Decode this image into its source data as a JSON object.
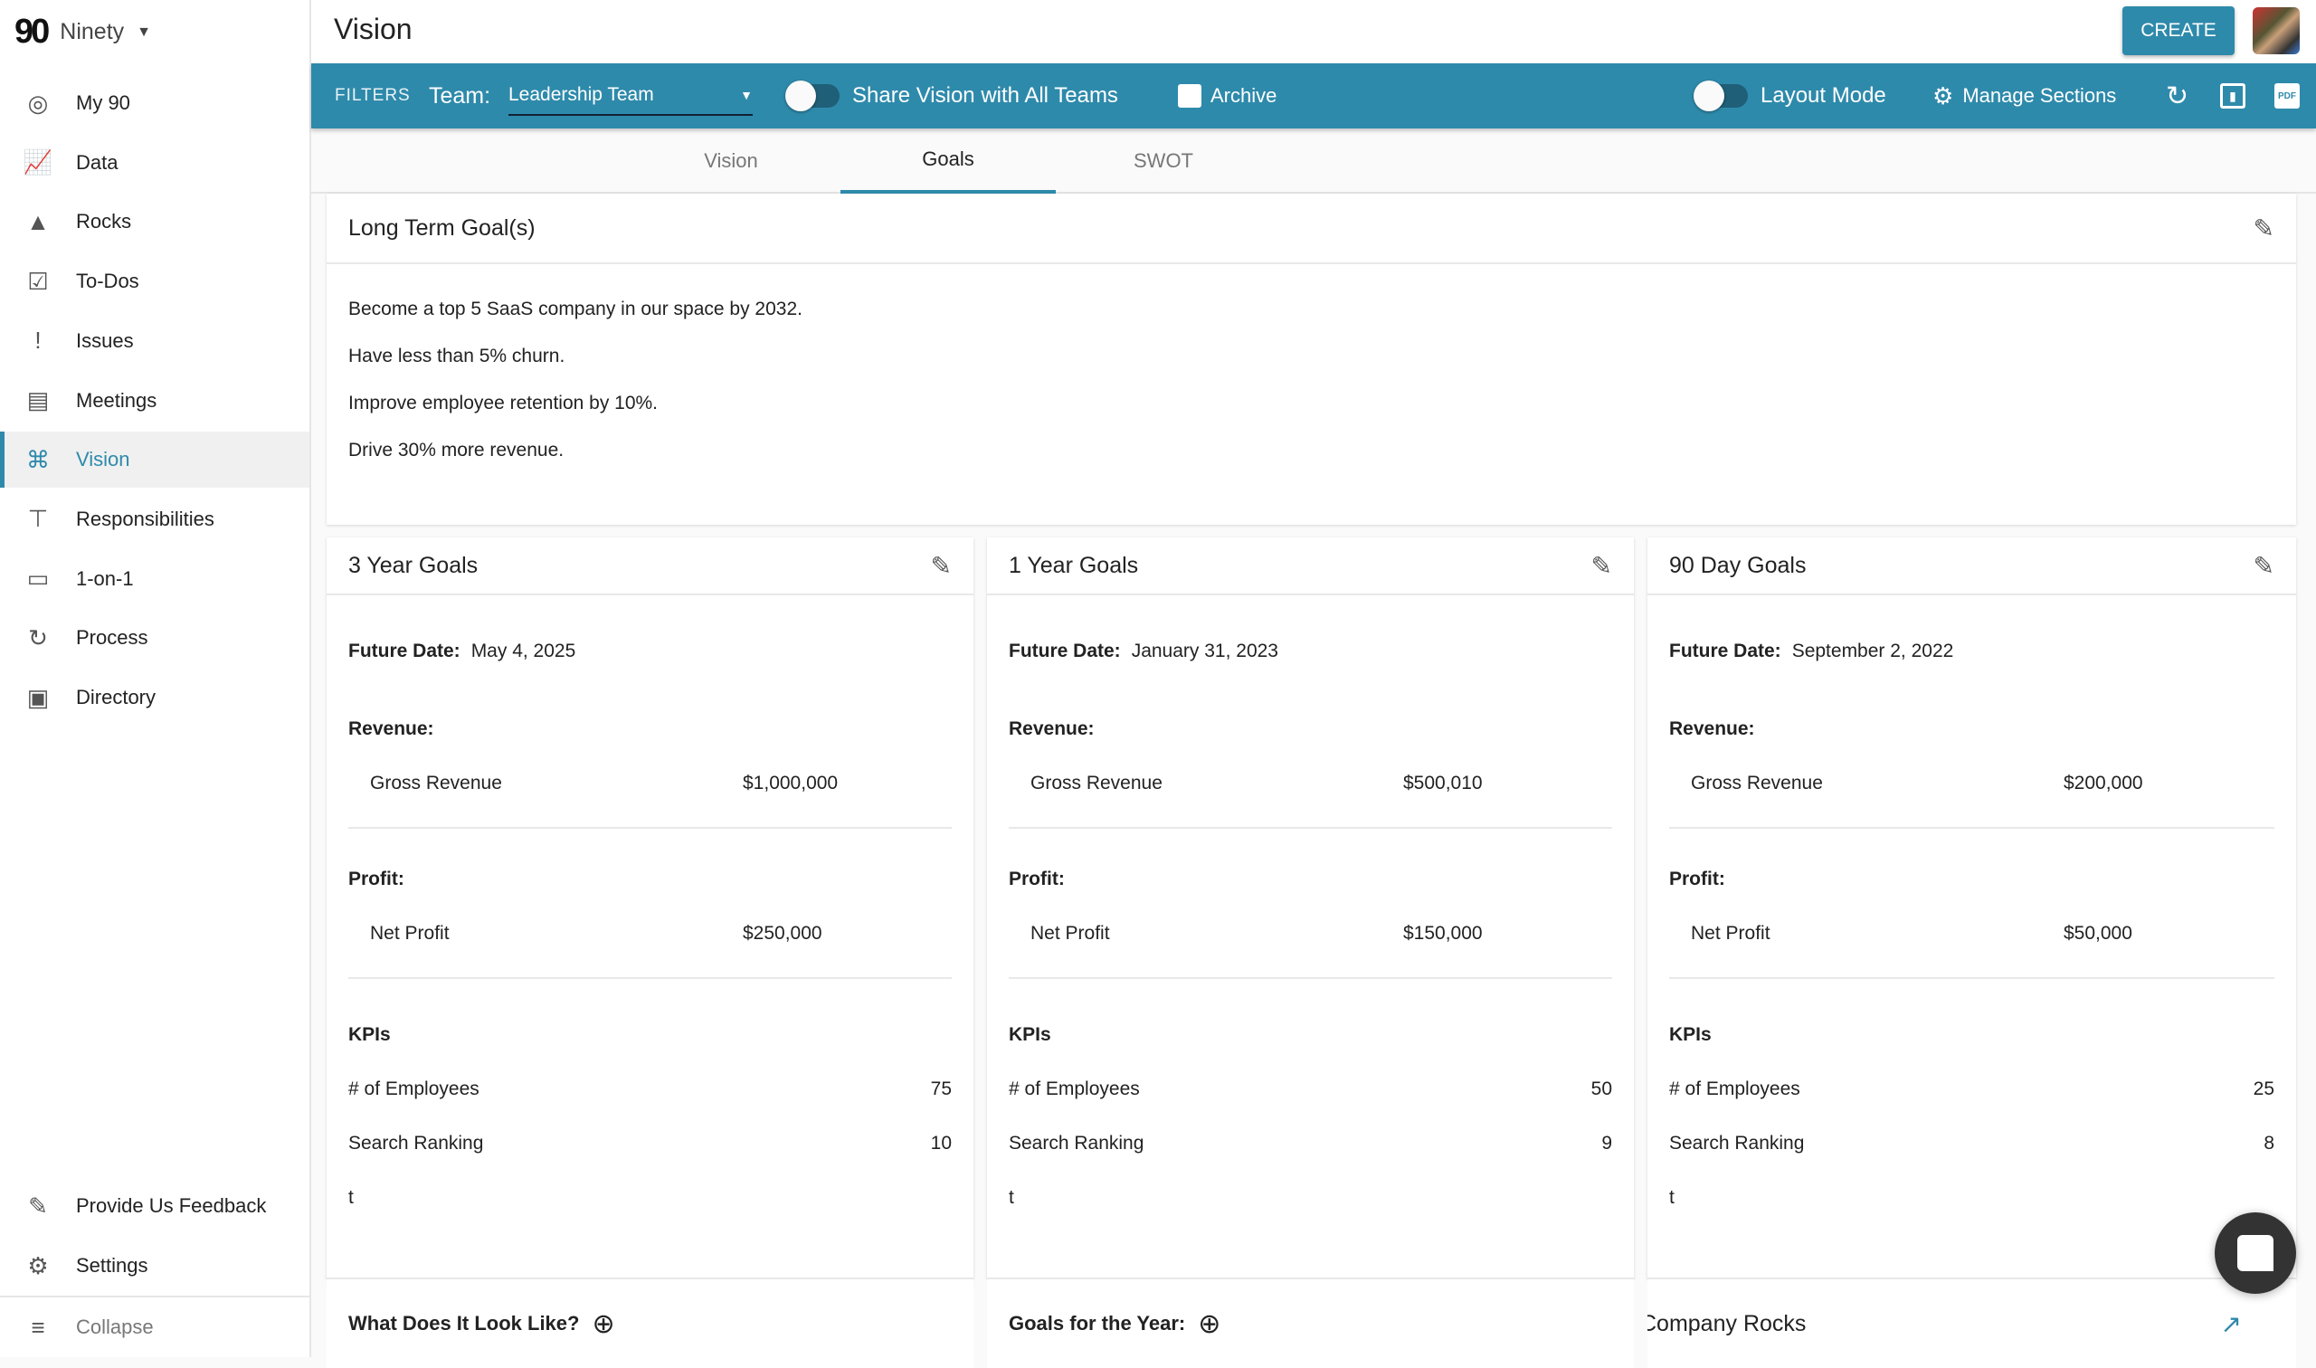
{
  "brand": {
    "logo": "90",
    "name": "Ninety"
  },
  "sidebar": {
    "items": [
      {
        "label": "My 90",
        "icon": "target-icon"
      },
      {
        "label": "Data",
        "icon": "chart-icon"
      },
      {
        "label": "Rocks",
        "icon": "mountain-icon"
      },
      {
        "label": "To-Dos",
        "icon": "checkbox-icon"
      },
      {
        "label": "Issues",
        "icon": "exclamation-icon"
      },
      {
        "label": "Meetings",
        "icon": "meetings-icon"
      },
      {
        "label": "Vision",
        "icon": "binoculars-icon"
      },
      {
        "label": "Responsibilities",
        "icon": "org-chart-icon"
      },
      {
        "label": "1-on-1",
        "icon": "chat-icon"
      },
      {
        "label": "Process",
        "icon": "sync-icon"
      },
      {
        "label": "Directory",
        "icon": "contacts-icon"
      }
    ],
    "feedback": "Provide Us Feedback",
    "settings": "Settings",
    "collapse": "Collapse",
    "active": "Vision"
  },
  "header": {
    "title": "Vision",
    "create": "CREATE"
  },
  "filters": {
    "label": "FILTERS",
    "team_label": "Team:",
    "team_value": "Leadership Team",
    "share": "Share Vision with All Teams",
    "archive": "Archive",
    "layout_mode": "Layout Mode",
    "manage_sections": "Manage Sections"
  },
  "tabs": [
    {
      "label": "Vision"
    },
    {
      "label": "Goals"
    },
    {
      "label": "SWOT"
    }
  ],
  "active_tab": "Goals",
  "long_term": {
    "title": "Long Term Goal(s)",
    "items": [
      "Become a top 5 SaaS company in our space by 2032.",
      "Have less than 5% churn.",
      "Improve employee retention by 10%.",
      "Drive 30% more revenue."
    ]
  },
  "labels": {
    "future_date": "Future Date:",
    "revenue": "Revenue:",
    "profit": "Profit:",
    "kpis": "KPIs"
  },
  "goals": [
    {
      "title": "3 Year Goals",
      "future_date": "May 4, 2025",
      "revenue_name": "Gross Revenue",
      "revenue": "$1,000,000",
      "profit_name": "Net Profit",
      "profit": "$250,000",
      "kpis": [
        {
          "name": "# of Employees",
          "value": "75"
        },
        {
          "name": "Search Ranking",
          "value": "10"
        },
        {
          "name": "t",
          "value": ""
        }
      ]
    },
    {
      "title": "1 Year Goals",
      "future_date": "January 31, 2023",
      "revenue_name": "Gross Revenue",
      "revenue": "$500,010",
      "profit_name": "Net Profit",
      "profit": "$150,000",
      "kpis": [
        {
          "name": "# of Employees",
          "value": "50"
        },
        {
          "name": "Search Ranking",
          "value": "9"
        },
        {
          "name": "t",
          "value": ""
        }
      ]
    },
    {
      "title": "90 Day Goals",
      "future_date": "September 2, 2022",
      "revenue_name": "Gross Revenue",
      "revenue": "$200,000",
      "profit_name": "Net Profit",
      "profit": "$50,000",
      "kpis": [
        {
          "name": "# of Employees",
          "value": "25"
        },
        {
          "name": "Search Ranking",
          "value": "8"
        },
        {
          "name": "t",
          "value": ""
        }
      ]
    }
  ],
  "bottom": {
    "a": "What Does It Look Like?",
    "b": "Goals for the Year:",
    "c": "Company Rocks"
  },
  "colors": {
    "accent": "#2e8aab"
  }
}
